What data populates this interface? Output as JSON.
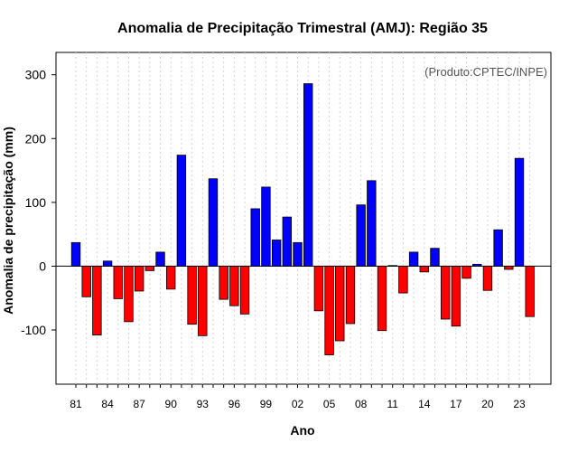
{
  "chart_data": {
    "type": "bar",
    "title": "Anomalia de Precipitação Trimestral (AMJ): Região 35",
    "xlabel": "Ano",
    "ylabel": "Anomalia de precipitação (mm)",
    "annotation": "(Produto:CPTEC/INPE)",
    "ylim": [
      -185,
      335
    ],
    "yticks": [
      -100,
      0,
      100,
      200,
      300
    ],
    "years": [
      1981,
      1982,
      1983,
      1984,
      1985,
      1986,
      1987,
      1988,
      1989,
      1990,
      1991,
      1992,
      1993,
      1994,
      1995,
      1996,
      1997,
      1998,
      1999,
      2000,
      2001,
      2002,
      2003,
      2004,
      2005,
      2006,
      2007,
      2008,
      2009,
      2010,
      2011,
      2012,
      2013,
      2014,
      2015,
      2016,
      2017,
      2018,
      2019,
      2020,
      2021,
      2022,
      2023,
      2024
    ],
    "values": [
      37,
      -48,
      -108,
      8,
      -51,
      -87,
      -39,
      -7,
      22,
      -36,
      174,
      -91,
      -109,
      137,
      -52,
      -62,
      -75,
      90,
      124,
      41,
      77,
      37,
      286,
      -70,
      -139,
      -117,
      -90,
      96,
      134,
      -101,
      1,
      -42,
      22,
      -9,
      28,
      -83,
      -94,
      -19,
      3,
      -38,
      57,
      -5,
      169,
      -79
    ],
    "tick_years": [
      "81",
      "84",
      "87",
      "90",
      "93",
      "96",
      "99",
      "02",
      "05",
      "08",
      "11",
      "14",
      "17",
      "20",
      "23"
    ],
    "colors": {
      "positive": "#0000ff",
      "negative": "#ff0000",
      "grid": "#d3d3d3",
      "zero_line": "#000000"
    }
  }
}
